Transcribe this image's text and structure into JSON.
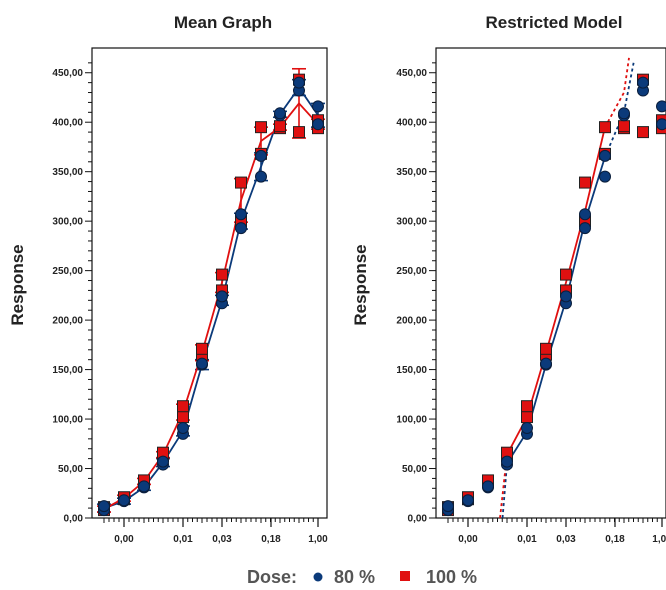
{
  "legend": {
    "title": "Dose:",
    "items": [
      {
        "label": "80 %",
        "color": "#0b3a7a",
        "marker": "circle"
      },
      {
        "label": "100 %",
        "color": "#e01010",
        "marker": "square"
      }
    ]
  },
  "chart_data": [
    {
      "type": "line",
      "title": "Mean Graph",
      "ylabel": "Response",
      "xlabel": "",
      "x_scale": "log",
      "y_ticks": [
        "0,00",
        "50,00",
        "100,00",
        "150,00",
        "200,00",
        "250,00",
        "300,00",
        "350,00",
        "400,00",
        "450,00"
      ],
      "x_ticks": [
        "0,00",
        "0,01",
        "0,03",
        "0,18",
        "1,00"
      ],
      "ylim": [
        0,
        475
      ],
      "series": [
        {
          "name": "80 %",
          "color": "#0b3a7a",
          "x": [
            0.0005,
            0.001,
            0.002,
            0.004,
            0.008,
            0.016,
            0.031,
            0.063,
            0.125,
            0.25,
            0.5,
            1.0
          ],
          "mean": [
            10,
            17,
            31,
            56,
            88,
            155,
            220,
            300,
            355,
            408,
            435,
            407
          ],
          "err": [
            4,
            3,
            3,
            4,
            5,
            5,
            5,
            8,
            14,
            3,
            8,
            12
          ],
          "points": [
            [
              8,
              12
            ],
            [
              17,
              18
            ],
            [
              31,
              32
            ],
            [
              54,
              57
            ],
            [
              85,
              91
            ],
            [
              155,
              156
            ],
            [
              217,
              224
            ],
            [
              293,
              307
            ],
            [
              345,
              366
            ],
            [
              407,
              409
            ],
            [
              432,
              440
            ],
            [
              398,
              416
            ]
          ]
        },
        {
          "name": "100 %",
          "color": "#e01010",
          "x": [
            0.0005,
            0.001,
            0.002,
            0.004,
            0.008,
            0.016,
            0.031,
            0.063,
            0.125,
            0.25,
            0.5,
            1.0
          ],
          "mean": [
            9,
            20,
            37,
            64,
            107,
            167,
            238,
            321,
            381,
            395,
            419,
            398
          ],
          "err": [
            3,
            3,
            3,
            3,
            8,
            8,
            10,
            22,
            14,
            3,
            35,
            5
          ],
          "points": [
            [
              8,
              11
            ],
            [
              19,
              21
            ],
            [
              36,
              38
            ],
            [
              63,
              66
            ],
            [
              102,
              113
            ],
            [
              165,
              171
            ],
            [
              230,
              246
            ],
            [
              300,
              339
            ],
            [
              368,
              395
            ],
            [
              394,
              396
            ],
            [
              390,
              443
            ],
            [
              394,
              402
            ]
          ]
        }
      ]
    },
    {
      "type": "scatter",
      "title": "Restricted Model",
      "ylabel": "Response",
      "xlabel": "",
      "x_scale": "log",
      "y_ticks": [
        "0,00",
        "50,00",
        "100,00",
        "150,00",
        "200,00",
        "250,00",
        "300,00",
        "350,00",
        "400,00",
        "450,00"
      ],
      "x_ticks": [
        "0,00",
        "0,01",
        "0,03",
        "0,18",
        "1,00"
      ],
      "ylim": [
        0,
        475
      ],
      "series": [
        {
          "name": "80 %",
          "color": "#0b3a7a",
          "x": [
            0.0005,
            0.001,
            0.002,
            0.004,
            0.008,
            0.016,
            0.031,
            0.063,
            0.125,
            0.25,
            0.5,
            1.0
          ],
          "points": [
            [
              8,
              12
            ],
            [
              17,
              18
            ],
            [
              31,
              32
            ],
            [
              54,
              57
            ],
            [
              85,
              91
            ],
            [
              155,
              156
            ],
            [
              217,
              224
            ],
            [
              293,
              307
            ],
            [
              345,
              366
            ],
            [
              407,
              409
            ],
            [
              432,
              440
            ],
            [
              398,
              416
            ]
          ],
          "fit": {
            "x": [
              0.0034,
              0.004,
              0.008,
              0.016,
              0.031,
              0.063,
              0.125,
              0.25,
              0.355
            ],
            "y": [
              0,
              55,
              87,
              155,
              220,
              300,
              365,
              410,
              460
            ]
          }
        },
        {
          "name": "100 %",
          "color": "#e01010",
          "x": [
            0.0005,
            0.001,
            0.002,
            0.004,
            0.008,
            0.016,
            0.031,
            0.063,
            0.125,
            0.25,
            0.5,
            1.0
          ],
          "points": [
            [
              8,
              11
            ],
            [
              19,
              21
            ],
            [
              36,
              38
            ],
            [
              63,
              66
            ],
            [
              102,
              113
            ],
            [
              165,
              171
            ],
            [
              230,
              246
            ],
            [
              300,
              339
            ],
            [
              368,
              395
            ],
            [
              394,
              396
            ],
            [
              390,
              443
            ],
            [
              394,
              402
            ]
          ],
          "fit": {
            "x": [
              0.0031,
              0.004,
              0.008,
              0.016,
              0.031,
              0.063,
              0.125,
              0.25,
              0.3
            ],
            "y": [
              0,
              64,
              102,
              167,
              238,
              310,
              395,
              430,
              465
            ]
          }
        }
      ]
    }
  ]
}
